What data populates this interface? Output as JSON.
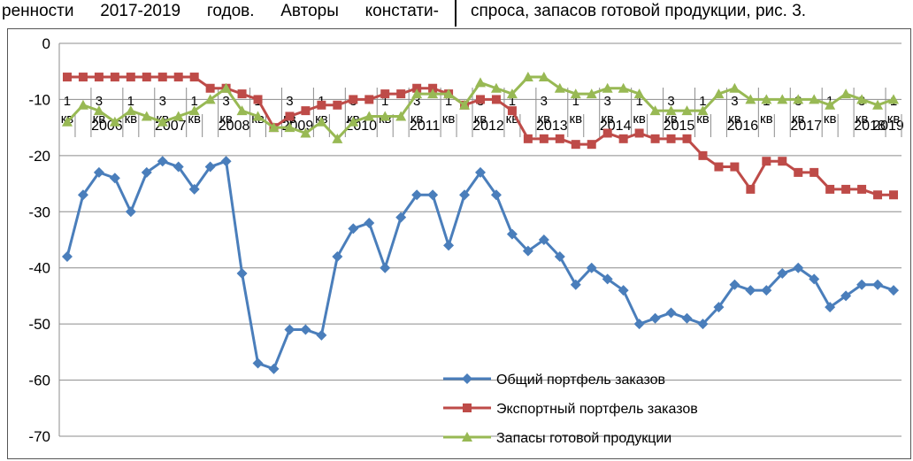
{
  "header": {
    "left_text": "ренности 2017-2019 годов. Авторы констати-",
    "right_text": "спроса, запасов готовой продукции, рис. 3."
  },
  "chart_data": {
    "type": "line",
    "ylim": [
      -70,
      0
    ],
    "yticks": [
      0,
      -10,
      -20,
      -30,
      -40,
      -50,
      -60,
      -70
    ],
    "grid": true,
    "legend_position": "bottom-right",
    "quarter_labels": [
      "1 кв",
      "3 кв",
      "1 кв",
      "3 кв",
      "1 кв",
      "3 кв",
      "1 кв",
      "3 кв",
      "1 кв",
      "3 кв",
      "1 кв",
      "3 кв",
      "1 кв",
      "3 кв",
      "1 кв",
      "3 кв",
      "1 кв",
      "3 кв",
      "1 кв",
      "3 кв",
      "1 кв",
      "3 кв",
      "1 кв",
      "3 кв",
      "1 кв",
      "3 кв",
      "1 кв"
    ],
    "year_labels": [
      "2006",
      "2007",
      "2008",
      "2009",
      "2010",
      "2011",
      "2012",
      "2013",
      "2014",
      "2015",
      "2016",
      "2017",
      "2018",
      "2019"
    ],
    "x_count": 53,
    "series": [
      {
        "name": "Общий портфель заказов",
        "color": "#4a7ebb",
        "marker": "diamond",
        "values": [
          -38,
          -27,
          -23,
          -24,
          -30,
          -23,
          -21,
          -22,
          -26,
          -22,
          -21,
          -41,
          -57,
          -58,
          -51,
          -51,
          -52,
          -38,
          -33,
          -32,
          -40,
          -31,
          -27,
          -27,
          -36,
          -27,
          -23,
          -27,
          -34,
          -37,
          -35,
          -38,
          -43,
          -40,
          -42,
          -44,
          -50,
          -49,
          -48,
          -49,
          -50,
          -47,
          -43,
          -44,
          -44,
          -41,
          -40,
          -42,
          -47,
          -45,
          -43,
          -43,
          -44
        ]
      },
      {
        "name": "Экспортный портфель заказов",
        "color": "#be4b48",
        "marker": "square",
        "values": [
          -6,
          -6,
          -6,
          -6,
          -6,
          -6,
          -6,
          -6,
          -6,
          -8,
          -8,
          -9,
          -10,
          -15,
          -13,
          -12,
          -11,
          -11,
          -10,
          -10,
          -9,
          -9,
          -8,
          -8,
          -9,
          -11,
          -10,
          -10,
          -12,
          -17,
          -17,
          -17,
          -18,
          -18,
          -16,
          -17,
          -16,
          -17,
          -17,
          -17,
          -20,
          -22,
          -22,
          -26,
          -21,
          -21,
          -23,
          -23,
          -26,
          -26,
          -26,
          -27,
          -27
        ]
      },
      {
        "name": "Запасы готовой продукции",
        "color": "#98b954",
        "marker": "triangle",
        "values": [
          -14,
          -11,
          -12,
          -14,
          -12,
          -13,
          -14,
          -13,
          -12,
          -10,
          -8,
          -12,
          -13,
          -15,
          -15,
          -16,
          -14,
          -17,
          -14,
          -13,
          -13,
          -13,
          -9,
          -9,
          -9,
          -11,
          -7,
          -8,
          -9,
          -6,
          -6,
          -8,
          -9,
          -9,
          -8,
          -8,
          -9,
          -12,
          -12,
          -12,
          -12,
          -9,
          -8,
          -10,
          -10,
          -10,
          -10,
          -10,
          -11,
          -9,
          -10,
          -11,
          -10
        ]
      }
    ]
  }
}
